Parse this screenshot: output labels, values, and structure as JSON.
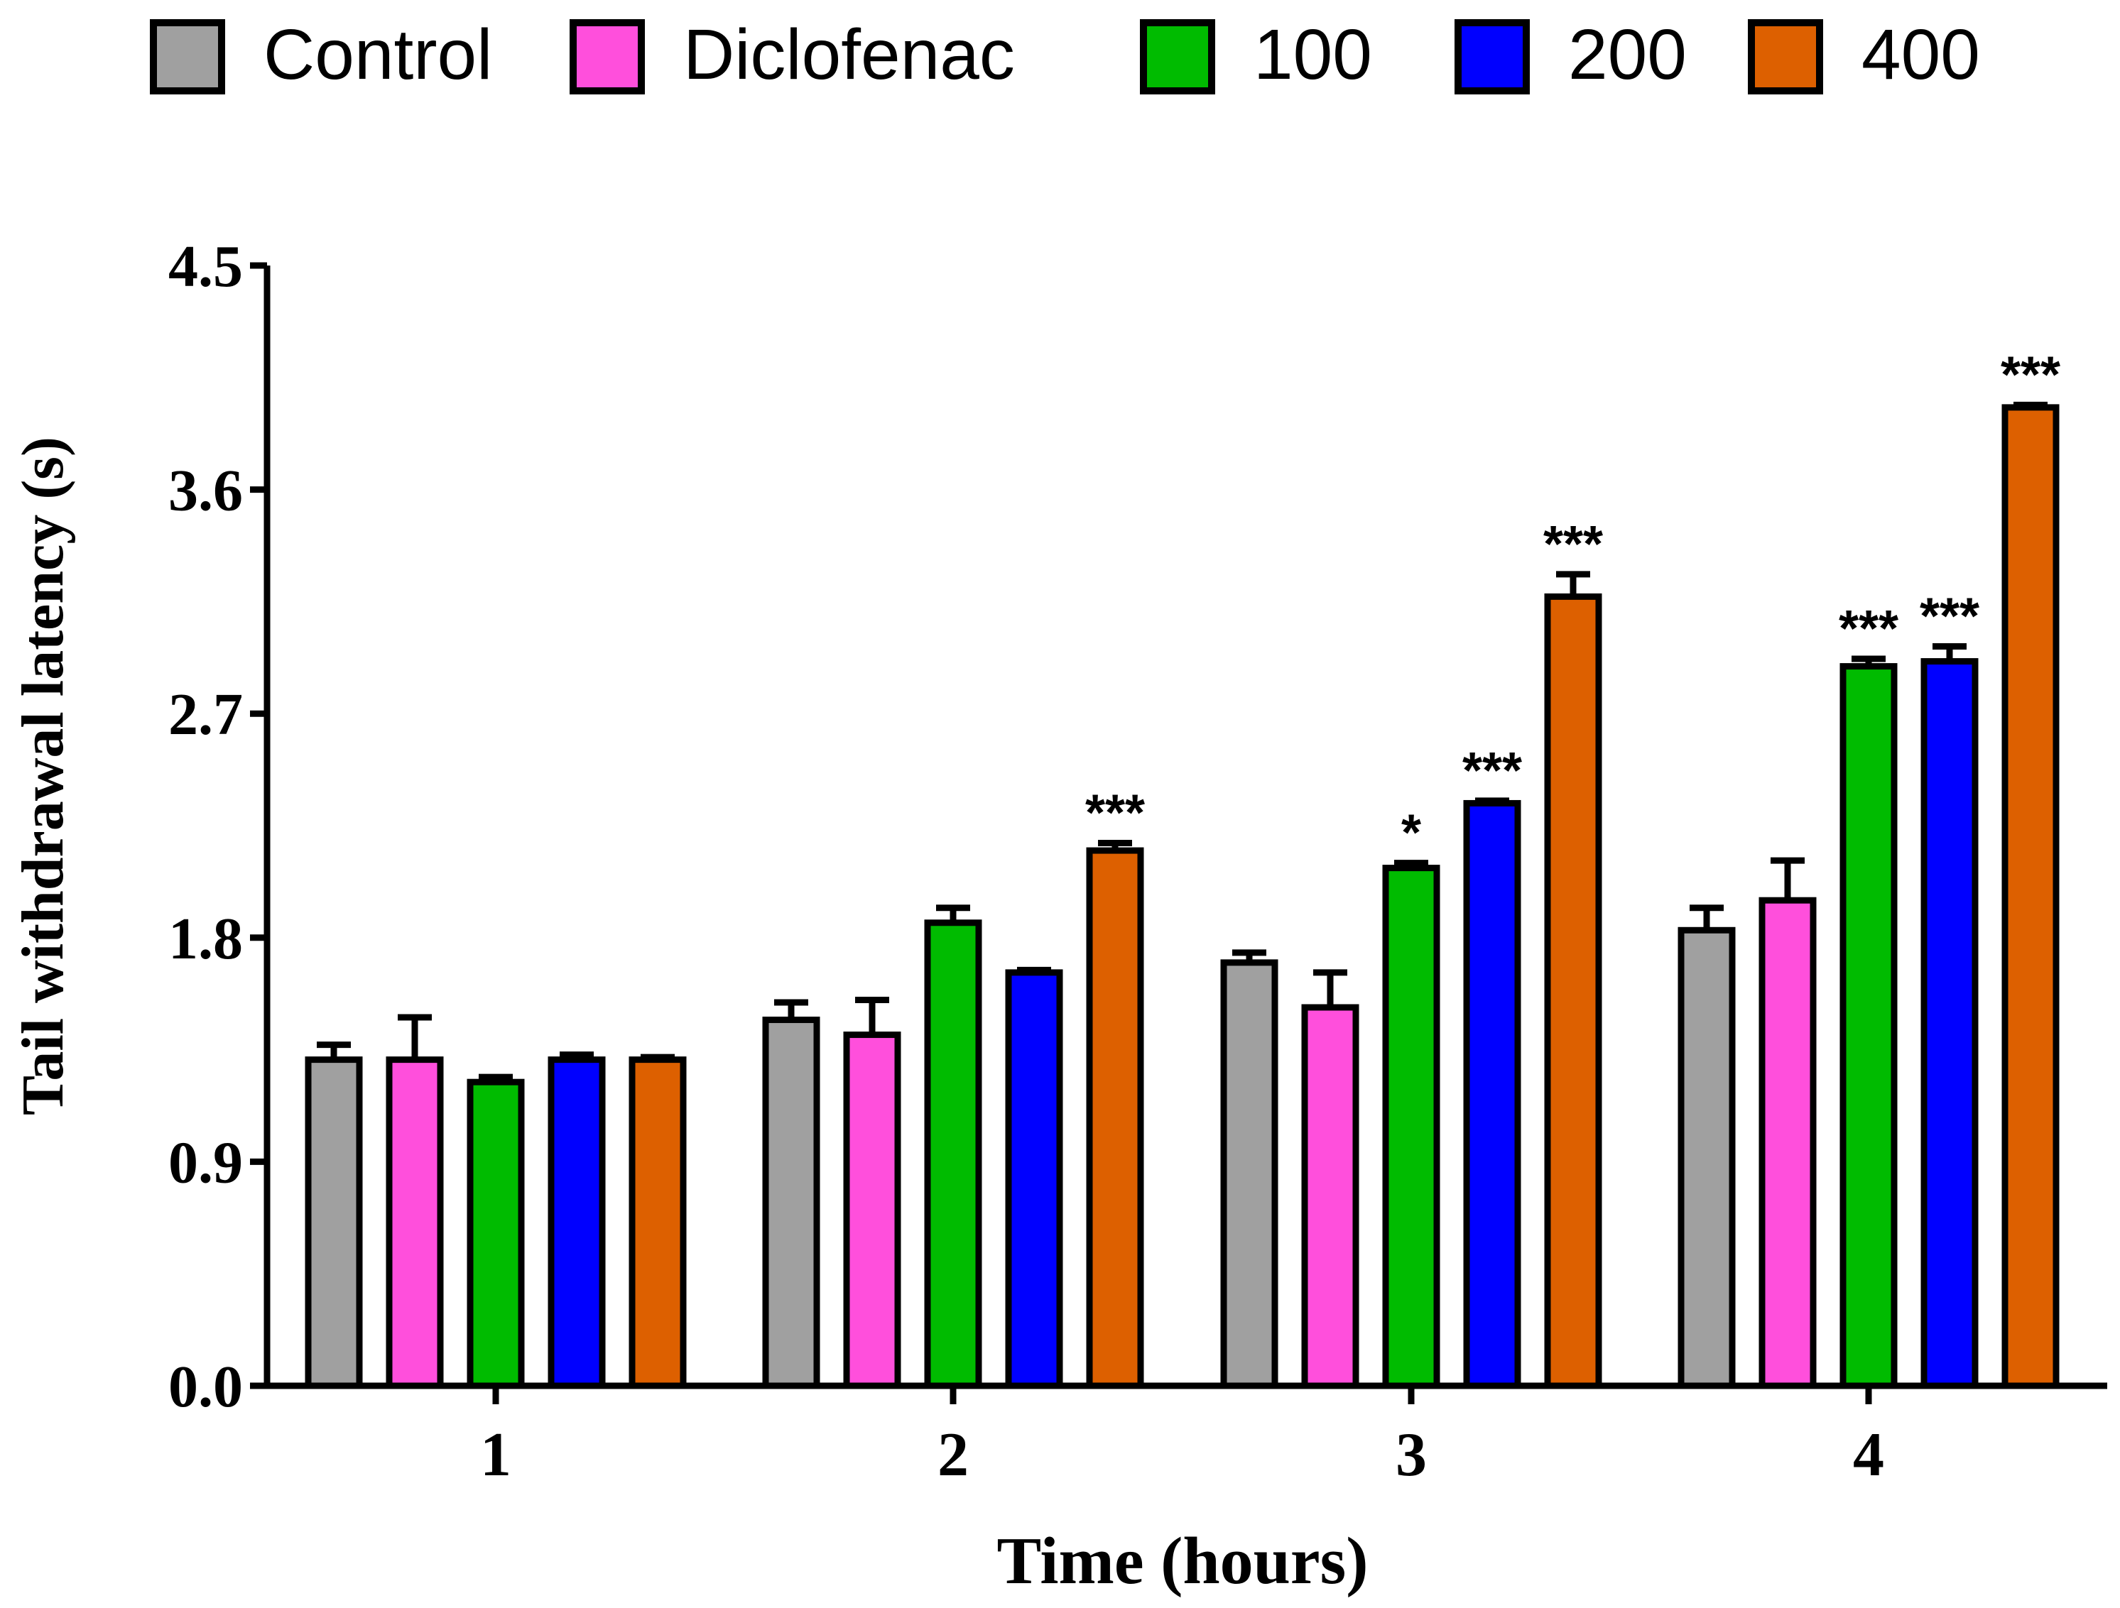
{
  "chart_data": {
    "type": "bar",
    "title": "",
    "xlabel": "Time (hours)",
    "ylabel": "Tail withdrawal latency (s)",
    "ylim": [
      0,
      4.5
    ],
    "y_ticks": [
      "0.0",
      "0.9",
      "1.8",
      "2.7",
      "3.6",
      "4.5"
    ],
    "categories": [
      "1",
      "2",
      "3",
      "4"
    ],
    "legend_position": "top",
    "grid": false,
    "series": [
      {
        "name": "Control",
        "color": "#a0a0a0",
        "values": [
          1.31,
          1.47,
          1.7,
          1.83
        ],
        "errors": [
          0.06,
          0.07,
          0.04,
          0.09
        ],
        "significance": [
          "",
          "",
          "",
          ""
        ]
      },
      {
        "name": "Diclofenac",
        "color": "#ff4fdc",
        "values": [
          1.31,
          1.41,
          1.52,
          1.95
        ],
        "errors": [
          0.17,
          0.14,
          0.14,
          0.16
        ],
        "significance": [
          "",
          "",
          "",
          ""
        ]
      },
      {
        "name": "100",
        "color": "#00bb00",
        "values": [
          1.22,
          1.86,
          2.08,
          2.89
        ],
        "errors": [
          0.02,
          0.06,
          0.02,
          0.03
        ],
        "significance": [
          "",
          "",
          "*",
          "***"
        ]
      },
      {
        "name": "200",
        "color": "#0000ff",
        "values": [
          1.31,
          1.66,
          2.34,
          2.91
        ],
        "errors": [
          0.02,
          0.01,
          0.01,
          0.06
        ],
        "significance": [
          "",
          "",
          "***",
          "***"
        ]
      },
      {
        "name": "400",
        "color": "#dd6000",
        "values": [
          1.31,
          2.15,
          3.17,
          3.93
        ],
        "errors": [
          0.01,
          0.03,
          0.09,
          0.01
        ],
        "significance": [
          "",
          "***",
          "***",
          "***"
        ]
      }
    ]
  }
}
